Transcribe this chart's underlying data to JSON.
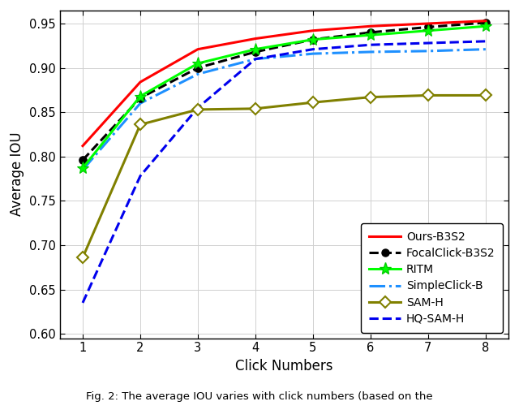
{
  "x": [
    1,
    2,
    3,
    4,
    5,
    6,
    7,
    8
  ],
  "ours_b3s2": [
    0.812,
    0.884,
    0.921,
    0.933,
    0.942,
    0.947,
    0.95,
    0.953
  ],
  "focalclick_b3s2": [
    0.796,
    0.866,
    0.9,
    0.918,
    0.932,
    0.94,
    0.946,
    0.951
  ],
  "ritm": [
    0.787,
    0.868,
    0.905,
    0.921,
    0.932,
    0.937,
    0.942,
    0.947
  ],
  "simpleclick_b": [
    0.785,
    0.86,
    0.893,
    0.91,
    0.916,
    0.918,
    0.919,
    0.921
  ],
  "sam_h": [
    0.686,
    0.836,
    0.853,
    0.854,
    0.861,
    0.867,
    0.869,
    0.869
  ],
  "hq_sam_h": [
    0.635,
    0.778,
    0.855,
    0.91,
    0.921,
    0.926,
    0.928,
    0.93
  ],
  "xlabel": "Click Numbers",
  "ylabel": "Average IOU",
  "xlim": [
    0.6,
    8.4
  ],
  "ylim": [
    0.595,
    0.965
  ],
  "yticks": [
    0.6,
    0.65,
    0.7,
    0.75,
    0.8,
    0.85,
    0.9,
    0.95
  ],
  "xticks": [
    1,
    2,
    3,
    4,
    5,
    6,
    7,
    8
  ],
  "colors": {
    "ours_b3s2": "#ff0000",
    "focalclick_b3s2": "#000000",
    "ritm": "#00ff00",
    "simpleclick_b": "#1e90ff",
    "sam_h": "#808000",
    "hq_sam_h": "#0000ee"
  },
  "legend_labels": [
    "Ours-B3S2",
    "FocalClick-B3S2",
    "RITM",
    "SimpleClick-B",
    "SAM-H",
    "HQ-SAM-H"
  ],
  "caption": "Fig. 2: The average IOU varies with click numbers (based on the"
}
